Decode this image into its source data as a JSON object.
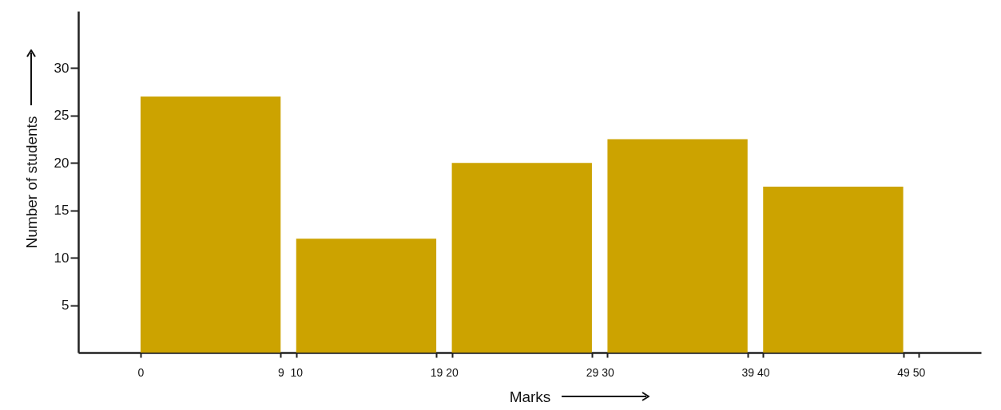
{
  "chart_data": {
    "type": "histogram",
    "xlabel": "Marks",
    "ylabel": "Number of students",
    "color": "#cca300",
    "bins": [
      0,
      9,
      10,
      19,
      20,
      29,
      30,
      39,
      40,
      49
    ],
    "values": [
      27,
      null,
      12,
      null,
      20,
      null,
      22.5,
      null,
      17.5
    ],
    "xlim": [
      -4,
      54
    ],
    "xticks": [
      0,
      9,
      10,
      19,
      20,
      29,
      30,
      39,
      40,
      49,
      50
    ],
    "ylim": [
      0,
      36
    ],
    "yticks": [
      5,
      10,
      15,
      20,
      25,
      30
    ],
    "grid": false
  }
}
